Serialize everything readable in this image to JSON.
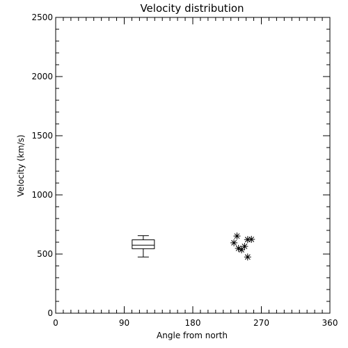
{
  "chart_data": {
    "type": "scatter",
    "title": "Velocity distribution",
    "xlabel": "Angle from north",
    "ylabel": "Velocity (km/s)",
    "xlim": [
      0,
      360
    ],
    "ylim": [
      0,
      2500
    ],
    "x_ticks": [
      0,
      90,
      180,
      270,
      360
    ],
    "y_ticks": [
      0,
      500,
      1000,
      1500,
      2000,
      2500
    ],
    "x_minor_step": 10,
    "y_minor_step": 100,
    "grid": false,
    "colors": {
      "axes": "#000000",
      "background": "#ffffff",
      "marks": "#000000"
    },
    "boxplot": {
      "x": 115,
      "min": 475,
      "q1": 545,
      "median": 575,
      "q3": 620,
      "max": 655
    },
    "points": [
      {
        "x": 238,
        "y": 652
      },
      {
        "x": 234,
        "y": 595
      },
      {
        "x": 252,
        "y": 622
      },
      {
        "x": 257,
        "y": 624
      },
      {
        "x": 248,
        "y": 565
      },
      {
        "x": 240,
        "y": 548
      },
      {
        "x": 244,
        "y": 536
      },
      {
        "x": 252,
        "y": 475
      }
    ]
  }
}
